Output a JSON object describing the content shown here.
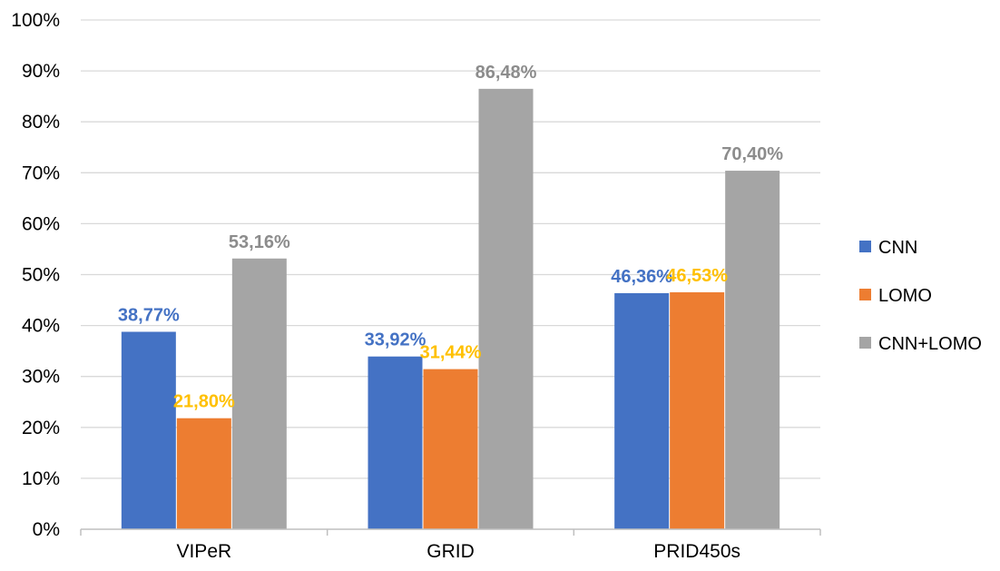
{
  "chart_data": {
    "type": "bar",
    "title": "",
    "xlabel": "",
    "ylabel": "",
    "ylim": [
      0,
      100
    ],
    "y_ticks": [
      0,
      10,
      20,
      30,
      40,
      50,
      60,
      70,
      80,
      90,
      100
    ],
    "y_tick_labels": [
      "0%",
      "10%",
      "20%",
      "30%",
      "40%",
      "50%",
      "60%",
      "70%",
      "80%",
      "90%",
      "100%"
    ],
    "grid": true,
    "legend_position": "right",
    "categories": [
      "VIPeR",
      "GRID",
      "PRID450s"
    ],
    "series": [
      {
        "name": "CNN",
        "color": "#4472C4",
        "label_color": "#4472C4",
        "values": [
          38.77,
          33.92,
          46.36
        ],
        "labels": [
          "38,77%",
          "33,92%",
          "46,36%"
        ]
      },
      {
        "name": "LOMO",
        "color": "#ED7D31",
        "label_color": "#FFC000",
        "values": [
          21.8,
          31.44,
          46.53
        ],
        "labels": [
          "21,80%",
          "31,44%",
          "46,53%"
        ]
      },
      {
        "name": "CNN+LOMO",
        "color": "#A5A5A5",
        "label_color": "#8C8C8C",
        "values": [
          53.16,
          86.48,
          70.4
        ],
        "labels": [
          "53,16%",
          "86,48%",
          "70,40%"
        ]
      }
    ]
  }
}
